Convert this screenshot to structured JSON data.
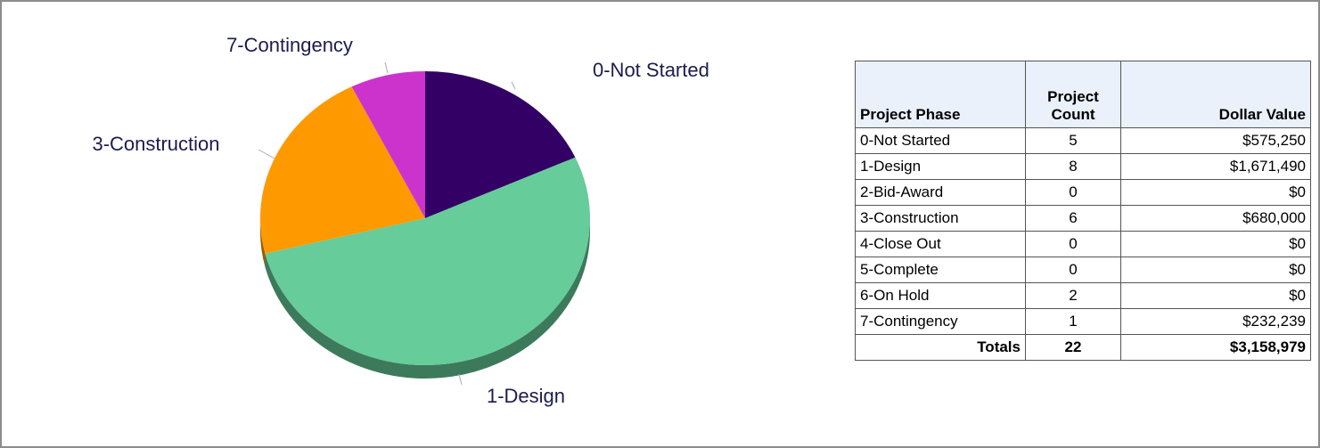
{
  "chart_data": {
    "type": "pie",
    "categories": [
      "0-Not Started",
      "1-Design",
      "3-Construction",
      "7-Contingency"
    ],
    "values": [
      575250,
      1671490,
      680000,
      232239
    ],
    "colors": [
      "#330066",
      "#66cc99",
      "#ff9900",
      "#cc33cc"
    ]
  },
  "table": {
    "headers": [
      "Project Phase",
      "Project Count",
      "Dollar Value"
    ],
    "rows": [
      [
        "0-Not Started",
        "5",
        "$575,250"
      ],
      [
        "1-Design",
        "8",
        "$1,671,490"
      ],
      [
        "2-Bid-Award",
        "0",
        "$0"
      ],
      [
        "3-Construction",
        "6",
        "$680,000"
      ],
      [
        "4-Close Out",
        "0",
        "$0"
      ],
      [
        "5-Complete",
        "0",
        "$0"
      ],
      [
        "6-On Hold",
        "2",
        "$0"
      ],
      [
        "7-Contingency",
        "1",
        "$232,239"
      ]
    ],
    "totals": [
      "Totals",
      "22",
      "$3,158,979"
    ]
  }
}
